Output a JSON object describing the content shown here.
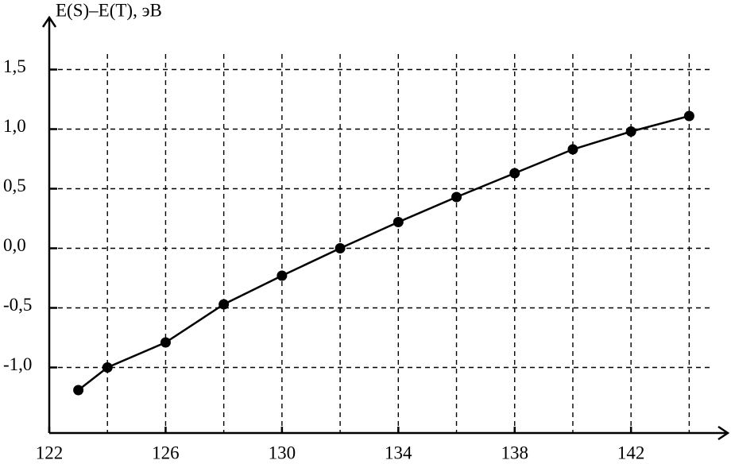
{
  "chart_data": {
    "type": "line",
    "y_label": "E(S)–E(T), эВ",
    "x": [
      123,
      124,
      126,
      128,
      130,
      132,
      134,
      136,
      138,
      140,
      142,
      144
    ],
    "series": [
      {
        "color": "#000000",
        "values": [
          -1.19,
          -1.0,
          -0.79,
          -0.47,
          -0.23,
          0.0,
          0.22,
          0.43,
          0.63,
          0.83,
          0.98,
          1.11
        ]
      }
    ],
    "xlim": [
      122,
      145
    ],
    "ylim": [
      -1.55,
      1.95
    ],
    "xticks": [
      122,
      126,
      130,
      134,
      138,
      142
    ],
    "xgrid": [
      124,
      126,
      128,
      130,
      132,
      134,
      136,
      138,
      140,
      142,
      144
    ],
    "yticks": [
      {
        "value": -1.0,
        "label": "-1,0"
      },
      {
        "value": -0.5,
        "label": "-0,5"
      },
      {
        "value": 0,
        "label": "0,0"
      },
      {
        "value": 0.5,
        "label": "0,5"
      },
      {
        "value": 1.0,
        "label": "1,0"
      },
      {
        "value": 1.5,
        "label": "1,5"
      }
    ],
    "grid": true
  }
}
